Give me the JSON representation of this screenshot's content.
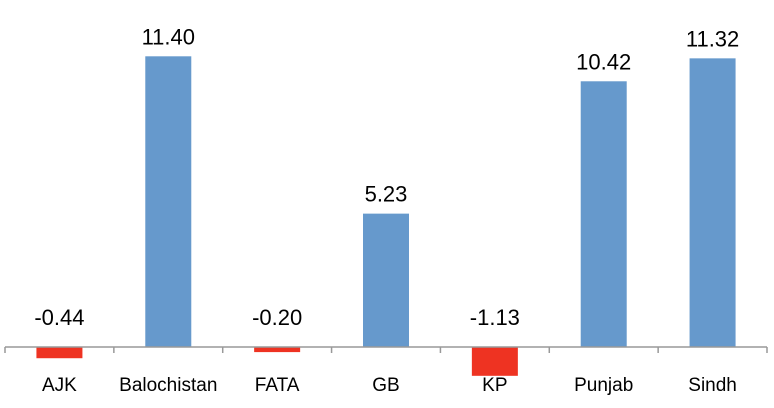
{
  "chart_data": {
    "type": "bar",
    "title": "",
    "xlabel": "",
    "ylabel": "",
    "categories": [
      "AJK",
      "Balochistan",
      "FATA",
      "GB",
      "KP",
      "Punjab",
      "Sindh"
    ],
    "values": [
      -0.44,
      11.4,
      -0.2,
      5.23,
      -1.13,
      10.42,
      11.32
    ],
    "data_labels": [
      "-0.44",
      "11.40",
      "-0.20",
      "5.23",
      "-1.13",
      "10.42",
      "11.32"
    ],
    "ylim": [
      -1.5,
      12.5
    ],
    "grid": false,
    "legend": "none",
    "y_axis_visible": false,
    "colors": {
      "positive": "#6699cc",
      "negative": "#ee3322",
      "axis": "#999999",
      "text": "#000000"
    }
  }
}
